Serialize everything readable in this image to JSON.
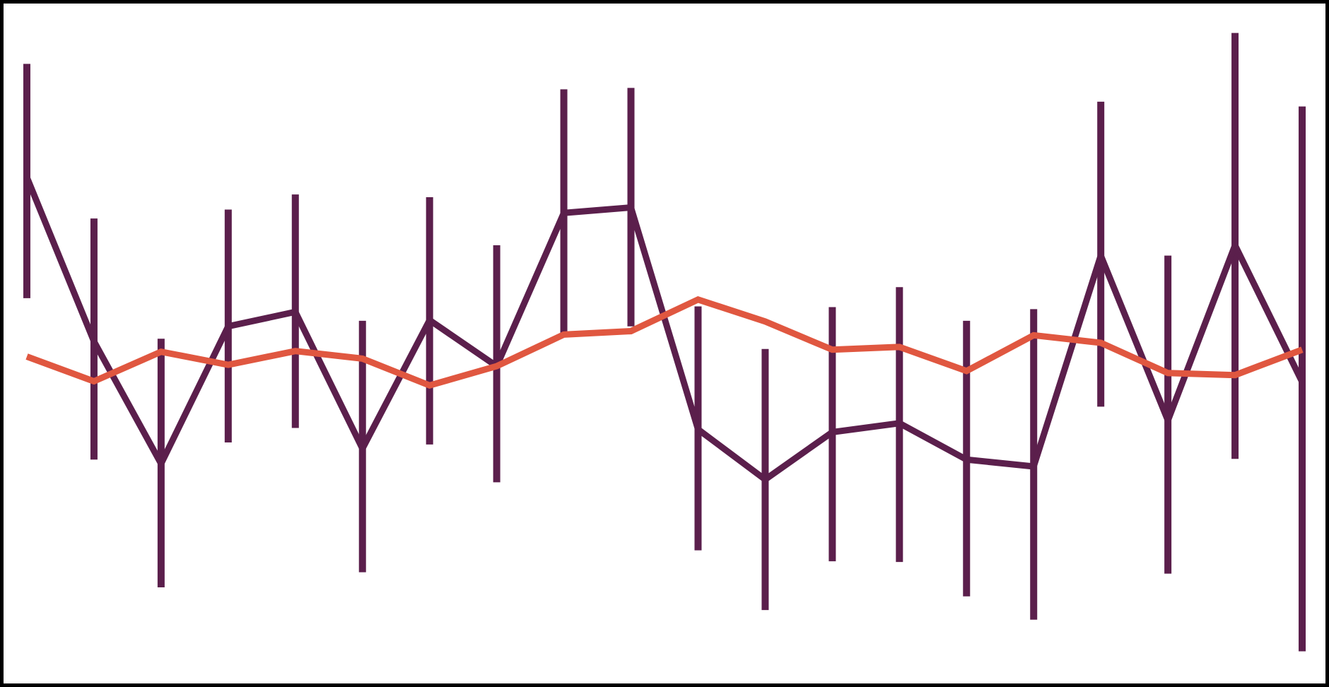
{
  "chart_data": {
    "type": "line",
    "title": "",
    "xlabel": "",
    "ylabel": "",
    "grid": false,
    "legend": "none",
    "x": [
      1,
      2,
      3,
      4,
      5,
      6,
      7,
      8,
      9,
      10,
      11,
      12,
      13,
      14,
      15,
      16,
      17,
      18,
      19,
      20
    ],
    "xlim": [
      0.6,
      20.4
    ],
    "ylim": [
      0.0,
      1.0
    ],
    "series": [
      {
        "values": [
          0.742,
          0.503,
          0.325,
          0.525,
          0.546,
          0.347,
          0.534,
          0.467,
          0.69,
          0.698,
          0.375,
          0.302,
          0.371,
          0.384,
          0.331,
          0.321,
          0.628,
          0.388,
          0.643,
          0.444
        ],
        "error_low": [
          0.566,
          0.331,
          0.145,
          0.356,
          0.377,
          0.167,
          0.353,
          0.298,
          0.511,
          0.525,
          0.199,
          0.112,
          0.183,
          0.182,
          0.132,
          0.098,
          0.408,
          0.165,
          0.332,
          0.052
        ],
        "error_high": [
          0.907,
          0.682,
          0.507,
          0.695,
          0.717,
          0.533,
          0.713,
          0.643,
          0.87,
          0.872,
          0.554,
          0.492,
          0.553,
          0.582,
          0.533,
          0.55,
          0.852,
          0.628,
          0.952,
          0.845
        ],
        "color": "#5b1f4c"
      },
      {
        "values": [
          0.481,
          0.445,
          0.488,
          0.469,
          0.489,
          0.478,
          0.439,
          0.467,
          0.513,
          0.518,
          0.564,
          0.532,
          0.491,
          0.495,
          0.46,
          0.512,
          0.501,
          0.457,
          0.454,
          0.491
        ],
        "color": "#e05740"
      }
    ]
  }
}
